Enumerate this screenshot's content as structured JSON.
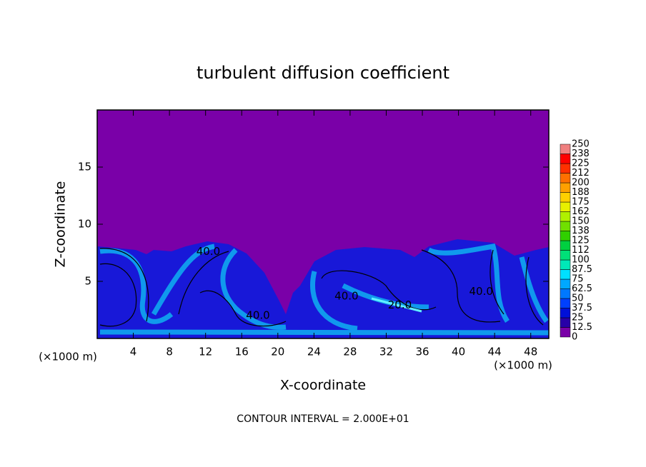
{
  "chart_data": {
    "type": "contour",
    "title": "turbulent diffusion coefficient",
    "xlabel": "X-coordinate",
    "ylabel": "Z-coordinate",
    "x_unit": "(×1000 m)",
    "footer": "CONTOUR INTERVAL = 2.000E+01",
    "xlim": [
      0,
      50
    ],
    "xticks": [
      4,
      8,
      12,
      16,
      20,
      24,
      28,
      32,
      36,
      40,
      44,
      48
    ],
    "ylim": [
      0,
      20
    ],
    "yticks": [
      5,
      10,
      15
    ],
    "colorbar": {
      "levels": [
        0,
        {
          "value": 12.5,
          "label": "12.5"
        },
        25,
        {
          "value": 37.5,
          "label": "37.5"
        },
        50,
        {
          "value": 62.5,
          "label": "62.5"
        },
        75,
        {
          "value": 87.5,
          "label": "87.5"
        },
        100,
        {
          "value": 112.5,
          "label": "112"
        },
        125,
        {
          "value": 137.5,
          "label": "138"
        },
        150,
        {
          "value": 162.5,
          "label": "162"
        },
        175,
        {
          "value": 187.5,
          "label": "188"
        },
        200,
        {
          "value": 212.5,
          "label": "212"
        },
        225,
        {
          "value": 237.5,
          "label": "238"
        },
        250
      ],
      "colors": [
        "#7a00a8",
        "#2800a8",
        "#0010d8",
        "#0040ff",
        "#0078ff",
        "#00a8ff",
        "#00e0ff",
        "#00e8b8",
        "#00e078",
        "#00d040",
        "#30d000",
        "#70e000",
        "#b0f000",
        "#e8f000",
        "#ffd000",
        "#ffa000",
        "#ff7000",
        "#ff3000",
        "#ff0000",
        "#f08080"
      ]
    },
    "contour_labels": {
      "x": [
        12.3,
        17.8,
        27.6,
        33.5,
        42.5
      ],
      "y": [
        7.6,
        2.0,
        3.7,
        2.9,
        4.1
      ],
      "values": [
        40,
        40,
        40,
        20,
        40
      ],
      "value_labels": [
        "40.0",
        "40.0",
        "40.0",
        "20.0",
        "40.0"
      ]
    }
  }
}
